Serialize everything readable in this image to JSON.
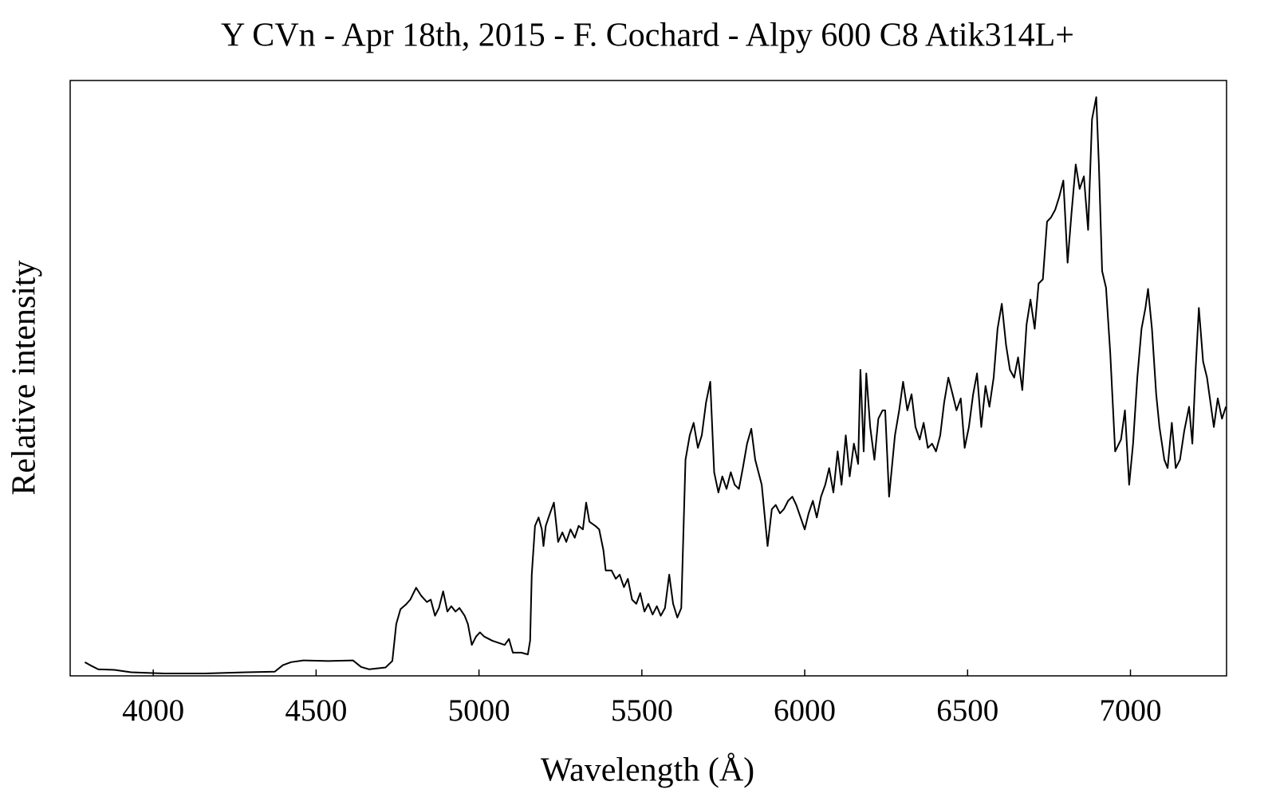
{
  "chart_data": {
    "type": "line",
    "title": "Y CVn - Apr 18th, 2015 - F. Cochard - Alpy 600 C8 Atik314L+",
    "x_label": "Wavelength (Å)",
    "y_label": "Relative intensity",
    "xlim": [
      3745,
      7295
    ],
    "ylim": [
      0,
      1
    ],
    "xticks": [
      4000,
      4500,
      5000,
      5500,
      6000,
      6500,
      7000
    ],
    "grid": false,
    "series": [
      {
        "color": "#000000",
        "x": [
          3790,
          3806,
          3831,
          3881,
          3932,
          4033,
          4159,
          4285,
          4373,
          4398,
          4423,
          4461,
          4537,
          4613,
          4638,
          4663,
          4713,
          4734,
          4746,
          4759,
          4776,
          4789,
          4807,
          4822,
          4840,
          4852,
          4865,
          4877,
          4890,
          4903,
          4915,
          4928,
          4940,
          4956,
          4966,
          4978,
          4991,
          5003,
          5016,
          5041,
          5079,
          5092,
          5104,
          5130,
          5150,
          5157,
          5162,
          5172,
          5183,
          5193,
          5198,
          5205,
          5218,
          5230,
          5243,
          5256,
          5268,
          5281,
          5294,
          5306,
          5319,
          5329,
          5339,
          5357,
          5369,
          5382,
          5389,
          5407,
          5420,
          5432,
          5445,
          5457,
          5470,
          5483,
          5495,
          5508,
          5520,
          5533,
          5546,
          5558,
          5571,
          5584,
          5596,
          5609,
          5621,
          5634,
          5647,
          5659,
          5672,
          5684,
          5697,
          5710,
          5722,
          5735,
          5747,
          5760,
          5773,
          5785,
          5798,
          5810,
          5823,
          5836,
          5848,
          5868,
          5886,
          5899,
          5911,
          5924,
          5936,
          5949,
          5962,
          5974,
          6000,
          6012,
          6025,
          6037,
          6050,
          6063,
          6075,
          6088,
          6101,
          6113,
          6126,
          6138,
          6151,
          6164,
          6171,
          6181,
          6189,
          6201,
          6214,
          6226,
          6239,
          6247,
          6259,
          6277,
          6290,
          6302,
          6315,
          6328,
          6340,
          6353,
          6365,
          6378,
          6391,
          6403,
          6416,
          6428,
          6441,
          6454,
          6466,
          6479,
          6491,
          6504,
          6517,
          6529,
          6542,
          6555,
          6567,
          6580,
          6592,
          6605,
          6618,
          6630,
          6643,
          6655,
          6668,
          6681,
          6693,
          6706,
          6718,
          6731,
          6744,
          6756,
          6769,
          6781,
          6794,
          6807,
          6819,
          6832,
          6844,
          6857,
          6870,
          6882,
          6895,
          6903,
          6913,
          6925,
          6938,
          6953,
          6971,
          6983,
          6996,
          7008,
          7021,
          7034,
          7046,
          7054,
          7066,
          7079,
          7089,
          7104,
          7114,
          7127,
          7139,
          7152,
          7165,
          7180,
          7190,
          7200,
          7210,
          7223,
          7235,
          7256,
          7268,
          7281,
          7293
        ],
        "values": [
          0.023,
          0.018,
          0.011,
          0.01,
          0.006,
          0.004,
          0.004,
          0.006,
          0.007,
          0.018,
          0.023,
          0.026,
          0.025,
          0.026,
          0.015,
          0.011,
          0.014,
          0.025,
          0.087,
          0.112,
          0.12,
          0.128,
          0.148,
          0.135,
          0.124,
          0.128,
          0.101,
          0.114,
          0.142,
          0.108,
          0.117,
          0.108,
          0.114,
          0.101,
          0.087,
          0.052,
          0.066,
          0.073,
          0.066,
          0.059,
          0.052,
          0.062,
          0.039,
          0.039,
          0.036,
          0.059,
          0.17,
          0.252,
          0.266,
          0.246,
          0.218,
          0.252,
          0.273,
          0.291,
          0.225,
          0.241,
          0.225,
          0.246,
          0.232,
          0.252,
          0.246,
          0.291,
          0.259,
          0.252,
          0.246,
          0.211,
          0.177,
          0.177,
          0.163,
          0.17,
          0.149,
          0.163,
          0.128,
          0.121,
          0.139,
          0.108,
          0.121,
          0.103,
          0.117,
          0.101,
          0.114,
          0.17,
          0.121,
          0.098,
          0.114,
          0.363,
          0.404,
          0.425,
          0.383,
          0.404,
          0.459,
          0.494,
          0.342,
          0.308,
          0.335,
          0.314,
          0.342,
          0.321,
          0.314,
          0.349,
          0.39,
          0.415,
          0.363,
          0.321,
          0.218,
          0.28,
          0.287,
          0.273,
          0.28,
          0.294,
          0.301,
          0.287,
          0.246,
          0.273,
          0.294,
          0.266,
          0.301,
          0.321,
          0.349,
          0.308,
          0.377,
          0.321,
          0.404,
          0.335,
          0.39,
          0.356,
          0.514,
          0.377,
          0.508,
          0.418,
          0.363,
          0.432,
          0.446,
          0.446,
          0.301,
          0.404,
          0.446,
          0.494,
          0.446,
          0.473,
          0.418,
          0.397,
          0.425,
          0.383,
          0.39,
          0.377,
          0.404,
          0.459,
          0.501,
          0.473,
          0.446,
          0.466,
          0.383,
          0.418,
          0.473,
          0.508,
          0.418,
          0.487,
          0.452,
          0.501,
          0.583,
          0.625,
          0.556,
          0.514,
          0.501,
          0.535,
          0.48,
          0.59,
          0.632,
          0.583,
          0.659,
          0.666,
          0.763,
          0.77,
          0.783,
          0.804,
          0.832,
          0.694,
          0.777,
          0.859,
          0.818,
          0.839,
          0.749,
          0.935,
          0.972,
          0.859,
          0.68,
          0.652,
          0.542,
          0.377,
          0.397,
          0.446,
          0.321,
          0.39,
          0.501,
          0.583,
          0.618,
          0.65,
          0.583,
          0.473,
          0.418,
          0.363,
          0.349,
          0.425,
          0.349,
          0.363,
          0.411,
          0.452,
          0.39,
          0.514,
          0.618,
          0.528,
          0.501,
          0.418,
          0.466,
          0.432,
          0.452
        ]
      }
    ]
  }
}
